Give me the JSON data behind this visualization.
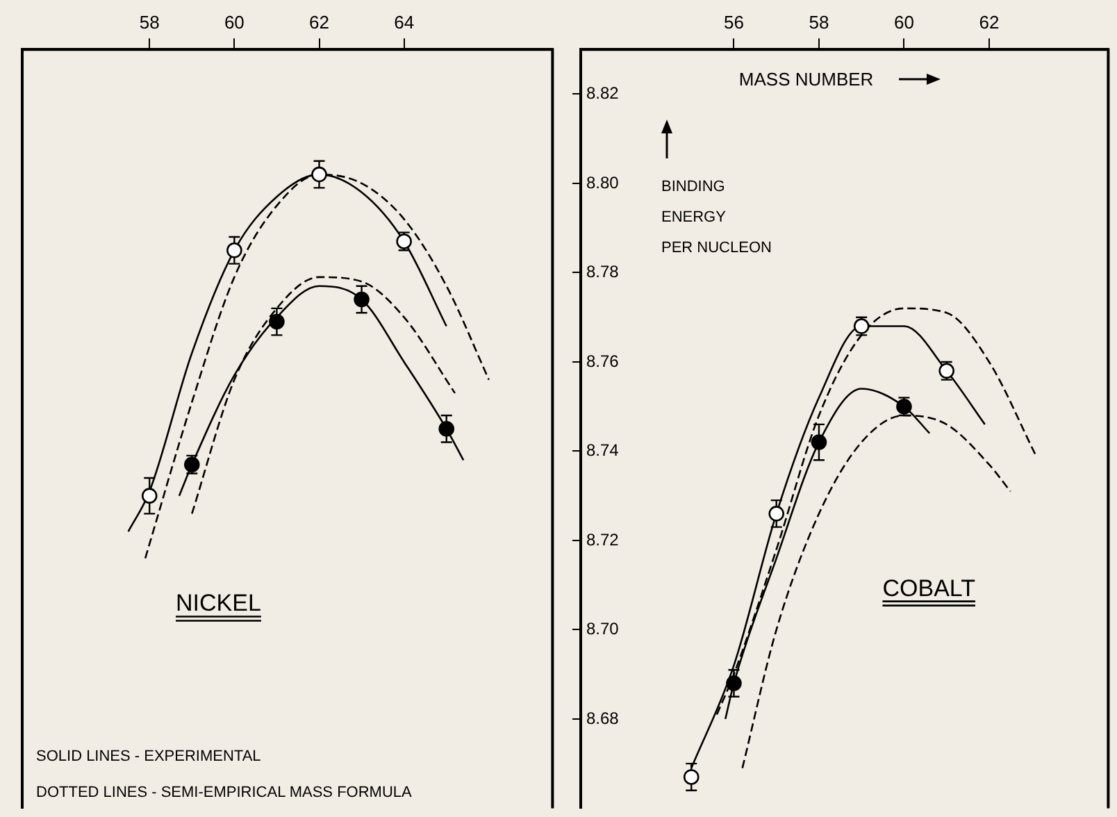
{
  "chart_data": [
    {
      "type": "line",
      "title": "NICKEL",
      "xlim": [
        55,
        67.5
      ],
      "xticks": [
        58,
        60,
        62,
        64
      ],
      "ylim": [
        8.66,
        8.83
      ],
      "tick_labels": "x",
      "annotations": [
        "SOLID LINES - EXPERIMENTAL",
        "DOTTED LINES - SEMI-EMPIRICAL MASS FORMULA"
      ],
      "series": [
        {
          "type": "scatter",
          "marker": "circle",
          "color": "#ffffff",
          "x": [
            58,
            60,
            62,
            64
          ],
          "values": [
            8.73,
            8.785,
            8.802,
            8.787
          ],
          "errors": [
            0.004,
            0.003,
            0.003,
            0.002
          ]
        },
        {
          "type": "scatter",
          "marker": "circle",
          "color": "#000000",
          "x": [
            59,
            61,
            63,
            65
          ],
          "values": [
            8.737,
            8.769,
            8.774,
            8.745
          ],
          "errors": [
            0.002,
            0.003,
            0.003,
            0.003
          ]
        },
        {
          "type": "line",
          "line_style": "solid",
          "color": "#000000",
          "x": [
            57.5,
            58,
            59,
            60,
            61,
            62,
            63,
            64,
            65
          ],
          "values": [
            8.722,
            8.731,
            8.762,
            8.785,
            8.797,
            8.802,
            8.798,
            8.787,
            8.768
          ]
        },
        {
          "type": "line",
          "line_style": "dashed",
          "color": "#000000",
          "x": [
            57.9,
            59,
            60,
            61,
            62,
            63,
            64,
            65,
            66
          ],
          "values": [
            8.716,
            8.751,
            8.779,
            8.795,
            8.802,
            8.8,
            8.792,
            8.777,
            8.756
          ]
        },
        {
          "type": "line",
          "line_style": "solid",
          "color": "#000000",
          "x": [
            58.7,
            59,
            60,
            61,
            62,
            63,
            64,
            65,
            65.4
          ],
          "values": [
            8.73,
            8.737,
            8.757,
            8.77,
            8.777,
            8.774,
            8.76,
            8.745,
            8.738
          ]
        },
        {
          "type": "line",
          "line_style": "dashed",
          "color": "#000000",
          "x": [
            59,
            60,
            61,
            62,
            63,
            64,
            65.2
          ],
          "values": [
            8.726,
            8.756,
            8.772,
            8.779,
            8.778,
            8.77,
            8.753
          ]
        }
      ]
    },
    {
      "type": "line",
      "title": "COBALT",
      "xlabel": "MASS NUMBER",
      "ylabel": "BINDING ENERGY PER NUCLEON",
      "xlim": [
        52.4,
        64.8
      ],
      "xticks": [
        56,
        58,
        60,
        62
      ],
      "ylim": [
        8.66,
        8.83
      ],
      "yticks": [
        8.68,
        {
          "value": 8.7,
          "label": "8.70"
        },
        8.72,
        8.74,
        8.76,
        8.78,
        {
          "value": 8.8,
          "label": "8.80"
        },
        8.82
      ],
      "series": [
        {
          "type": "scatter",
          "marker": "circle",
          "color": "#ffffff",
          "x": [
            55,
            57,
            59,
            61
          ],
          "values": [
            8.667,
            8.726,
            8.768,
            8.758
          ],
          "errors": [
            0.003,
            0.003,
            0.002,
            0.002
          ]
        },
        {
          "type": "scatter",
          "marker": "circle",
          "color": "#000000",
          "x": [
            56,
            58,
            60
          ],
          "values": [
            8.688,
            8.742,
            8.75
          ],
          "errors": [
            0.003,
            0.004,
            0.002
          ]
        },
        {
          "type": "line",
          "line_style": "solid",
          "color": "#000000",
          "x": [
            55,
            56,
            57,
            58,
            59,
            60,
            61,
            61.9
          ],
          "values": [
            8.669,
            8.692,
            8.726,
            8.752,
            8.768,
            8.768,
            8.758,
            8.746
          ]
        },
        {
          "type": "line",
          "line_style": "dashed",
          "color": "#000000",
          "x": [
            55.6,
            56,
            57,
            58,
            59,
            60,
            61,
            62,
            63.1
          ],
          "values": [
            8.681,
            8.69,
            8.718,
            8.748,
            8.766,
            8.772,
            8.771,
            8.76,
            8.739
          ]
        },
        {
          "type": "line",
          "line_style": "solid",
          "color": "#000000",
          "x": [
            55.8,
            56,
            57,
            58,
            59,
            60,
            60.6
          ],
          "values": [
            8.68,
            8.688,
            8.716,
            8.742,
            8.754,
            8.75,
            8.744
          ]
        },
        {
          "type": "line",
          "line_style": "dashed",
          "color": "#000000",
          "x": [
            56.2,
            57,
            58,
            59,
            60,
            61,
            62,
            62.5
          ],
          "values": [
            8.669,
            8.7,
            8.726,
            8.742,
            8.748,
            8.746,
            8.737,
            8.731
          ]
        }
      ]
    }
  ]
}
